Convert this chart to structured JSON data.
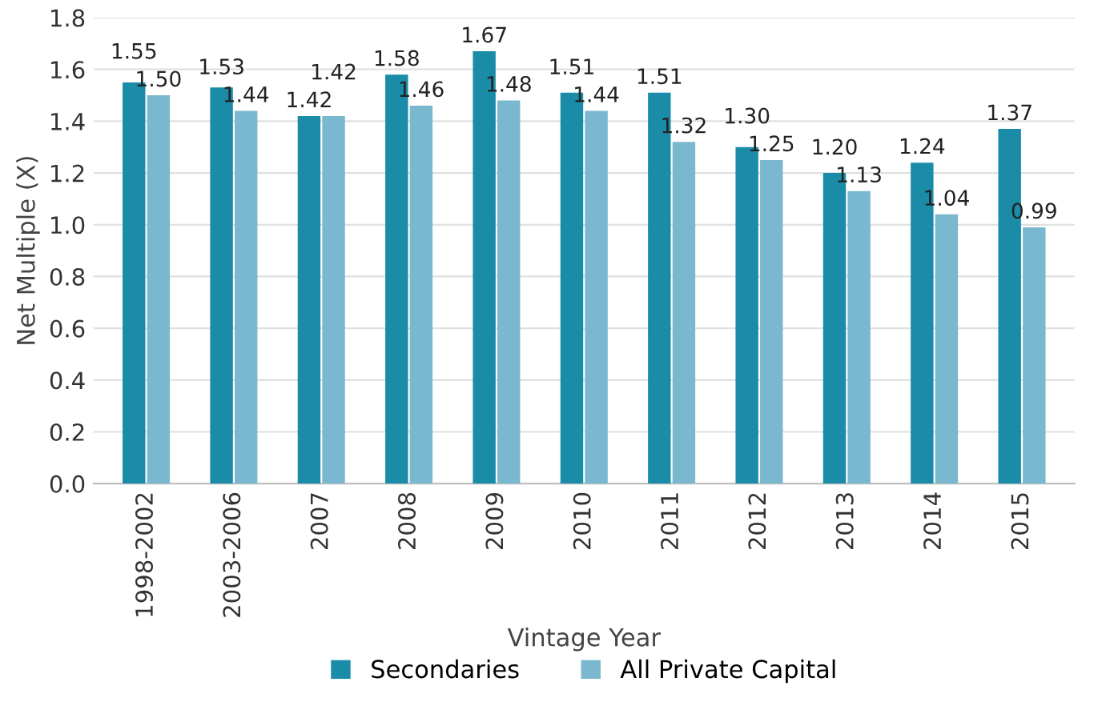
{
  "chart_data": {
    "type": "bar",
    "xlabel": "Vintage Year",
    "ylabel": "Net Multiple (X)",
    "categories": [
      "1998-2002",
      "2003-2006",
      "2007",
      "2008",
      "2009",
      "2010",
      "2011",
      "2012",
      "2013",
      "2014",
      "2015"
    ],
    "series": [
      {
        "name": "Secondaries",
        "color": "#1a8ca8",
        "values": [
          1.55,
          1.53,
          1.42,
          1.58,
          1.67,
          1.51,
          1.51,
          1.3,
          1.2,
          1.24,
          1.37
        ],
        "value_labels": [
          "1.55",
          "1.53",
          "1.42",
          "1.58",
          "1.67",
          "1.51",
          "1.51",
          "1.30",
          "1.20",
          "1.24",
          "1.37"
        ]
      },
      {
        "name": "All Private Capital",
        "color": "#7ab8cf",
        "values": [
          1.5,
          1.44,
          1.42,
          1.46,
          1.48,
          1.44,
          1.32,
          1.25,
          1.13,
          1.04,
          0.99
        ],
        "value_labels": [
          "1.50",
          "1.44",
          "1.42",
          "1.46",
          "1.48",
          "1.44",
          "1.32",
          "1.25",
          "1.13",
          "1.04",
          "0.99"
        ]
      }
    ],
    "ylim": [
      0,
      1.8
    ],
    "yticks": [
      "0.0",
      "0.2",
      "0.4",
      "0.6",
      "0.8",
      "1.0",
      "1.2",
      "1.4",
      "1.6",
      "1.8"
    ],
    "grid": "y",
    "legend": "bottom"
  }
}
